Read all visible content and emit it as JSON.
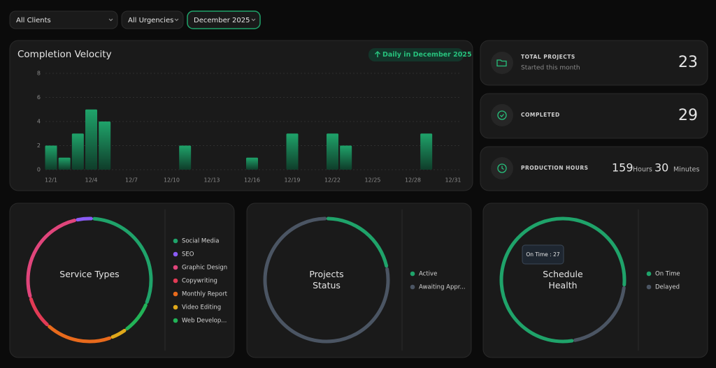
{
  "filters": [
    "All Clients",
    "All Urgencies",
    "December 2025"
  ],
  "stats": [
    {
      "label": "TOTAL PROJECTS",
      "sublabel": "Started this month",
      "value": 23
    },
    {
      "label": "COMPLETED",
      "value": 29
    },
    {
      "label": "PRODUCTION HOURS",
      "value": 159,
      "unit": "Hours",
      "value2": 30,
      "unit2": "Minutes"
    }
  ],
  "chart_data": [
    {
      "type": "bar",
      "title": "Completion Velocity",
      "badge": "Daily in December 2025",
      "categories": [
        "12/1",
        null,
        null,
        "12/4",
        null,
        null,
        "12/7",
        null,
        null,
        "12/10",
        null,
        null,
        "12/13",
        null,
        null,
        "12/16",
        null,
        null,
        "12/19",
        null,
        null,
        "12/22",
        null,
        null,
        "12/25",
        null,
        null,
        "12/28",
        null,
        null,
        "12/31"
      ],
      "values": [
        2,
        1,
        3,
        5,
        4,
        0,
        0,
        0,
        0,
        0,
        2,
        0,
        0,
        0,
        0,
        1,
        0,
        0,
        3,
        0,
        0,
        3,
        2,
        0,
        0,
        0,
        0,
        0,
        3,
        0,
        0
      ],
      "color": "#1fa36a",
      "ylim": [
        0,
        8
      ],
      "yticks": [
        0,
        2,
        4,
        6,
        8
      ],
      "grid": true
    },
    {
      "type": "donut",
      "title": "Service Types",
      "categories": [
        "Social Media",
        "SEO",
        "Graphic Design",
        "Copywriting",
        "Monthly Report",
        "Video Editing",
        "Web Develop..."
      ],
      "values": [
        7,
        1,
        6,
        2,
        4,
        1,
        2
      ],
      "colors": [
        "#1fa36a",
        "#8b5cf6",
        "#e0457b",
        "#e23b55",
        "#e86a1c",
        "#e0a81a",
        "#22b357"
      ]
    },
    {
      "type": "donut",
      "title": "Projects Status",
      "categories": [
        "Active",
        "Awaiting Appr..."
      ],
      "values": [
        5,
        18
      ],
      "colors": [
        "#1fa36a",
        "#4b5563"
      ]
    },
    {
      "type": "donut",
      "title": "Schedule Health",
      "categories": [
        "On Time",
        "Delayed"
      ],
      "values": [
        27,
        7
      ],
      "colors": [
        "#1fa36a",
        "#4b5563"
      ],
      "tooltip": "On Time : 27"
    }
  ]
}
